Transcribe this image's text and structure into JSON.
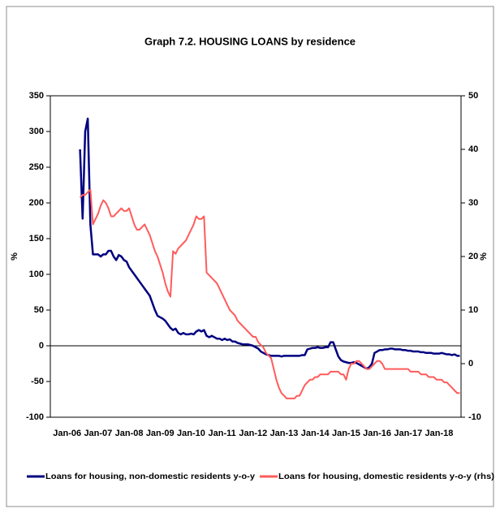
{
  "chart_data": {
    "type": "line",
    "title": "Graph 7.2. HOUSING LOANS by residence",
    "ylabel": "%",
    "y2label": "%",
    "categories": [
      null,
      null,
      null,
      null,
      null,
      null,
      "Jan-06",
      null,
      null,
      null,
      null,
      null,
      null,
      null,
      null,
      null,
      null,
      null,
      "Jan-07",
      null,
      null,
      null,
      null,
      null,
      null,
      null,
      null,
      null,
      null,
      null,
      "Jan-08",
      null,
      null,
      null,
      null,
      null,
      null,
      null,
      null,
      null,
      null,
      null,
      "Jan-09",
      null,
      null,
      null,
      null,
      null,
      null,
      null,
      null,
      null,
      null,
      null,
      "Jan-10",
      null,
      null,
      null,
      null,
      null,
      null,
      null,
      null,
      null,
      null,
      null,
      "Jan-11",
      null,
      null,
      null,
      null,
      null,
      null,
      null,
      null,
      null,
      null,
      null,
      "Jan-12",
      null,
      null,
      null,
      null,
      null,
      null,
      null,
      null,
      null,
      null,
      null,
      "Jan-13",
      null,
      null,
      null,
      null,
      null,
      null,
      null,
      null,
      null,
      null,
      null,
      "Jan-14",
      null,
      null,
      null,
      null,
      null,
      null,
      null,
      null,
      null,
      null,
      null,
      "Jan-15",
      null,
      null,
      null,
      null,
      null,
      null,
      null,
      null,
      null,
      null,
      null,
      "Jan-16",
      null,
      null,
      null,
      null,
      null,
      null,
      null,
      null,
      null,
      null,
      null,
      "Jan-17",
      null,
      null,
      null,
      null,
      null,
      null,
      null,
      null,
      null,
      null,
      null,
      "Jan-18",
      null,
      null,
      null,
      null,
      null,
      null,
      null,
      null
    ],
    "series": [
      {
        "name": "Loans for housing, non-domestic residents y-o-y",
        "color": "#000080",
        "axis": "y",
        "values": [
          null,
          null,
          null,
          null,
          null,
          null,
          null,
          null,
          null,
          null,
          null,
          275,
          178,
          300,
          318,
          170,
          128,
          128,
          128,
          125,
          128,
          128,
          133,
          133,
          125,
          120,
          127,
          125,
          120,
          118,
          110,
          105,
          100,
          95,
          90,
          85,
          80,
          75,
          70,
          60,
          50,
          42,
          40,
          38,
          35,
          30,
          25,
          22,
          24,
          18,
          16,
          18,
          16,
          16,
          17,
          16,
          20,
          22,
          20,
          22,
          14,
          12,
          14,
          12,
          10,
          10,
          8,
          10,
          8,
          9,
          6,
          6,
          4,
          3,
          2,
          2,
          2,
          1,
          0,
          -2,
          -4,
          -8,
          -10,
          -12,
          -13,
          -14,
          -14,
          -14,
          -14,
          -15,
          -14,
          -14,
          -14,
          -14,
          -14,
          -14,
          -14,
          -13,
          -13,
          -5,
          -4,
          -3,
          -3,
          -2,
          -3,
          -3,
          -2,
          -2,
          5,
          5,
          -5,
          -15,
          -20,
          -22,
          -23,
          -24,
          -24,
          -23,
          -24,
          -26,
          -28,
          -30,
          -32,
          -30,
          -25,
          -10,
          -8,
          -6,
          -6,
          -5,
          -5,
          -4,
          -4,
          -5,
          -5,
          -5,
          -6,
          -6,
          -7,
          -7,
          -8,
          -8,
          -8,
          -9,
          -9,
          -10,
          -10,
          -10,
          -11,
          -11,
          -11,
          -10,
          -11,
          -12,
          -12,
          -13,
          -12,
          -14,
          -14
        ]
      },
      {
        "name": "Loans for housing, domestic residents y-o-y (rhs)",
        "color": "#ff5b5b",
        "axis": "y2",
        "values": [
          null,
          null,
          null,
          null,
          null,
          null,
          null,
          null,
          null,
          null,
          null,
          31,
          31.5,
          31.5,
          32,
          32.5,
          26,
          27,
          28,
          29.5,
          30.5,
          30,
          29,
          27.5,
          27.5,
          28,
          28.5,
          29,
          28.5,
          28.5,
          29,
          27.5,
          26,
          25,
          25,
          25.5,
          26,
          25,
          24,
          22.5,
          21,
          20,
          18.5,
          17,
          15,
          13.5,
          12.5,
          21,
          20.5,
          21.5,
          22,
          22.5,
          23,
          24,
          25,
          26,
          27.5,
          27,
          27,
          27.5,
          17,
          16.5,
          16,
          15.5,
          15,
          14,
          13,
          12,
          11,
          10,
          9.5,
          9,
          8,
          7.5,
          7,
          6.5,
          6,
          5.5,
          5,
          5,
          4,
          3.5,
          3,
          2,
          1.5,
          1,
          -1,
          -3,
          -4.5,
          -5.5,
          -6,
          -6.5,
          -6.5,
          -6.5,
          -6.5,
          -6,
          -6,
          -5,
          -4,
          -3.5,
          -3,
          -3,
          -2.5,
          -2.5,
          -2,
          -2,
          -2,
          -2,
          -1.5,
          -1.5,
          -1.5,
          -1.5,
          -2,
          -2,
          -3,
          -1,
          0,
          0,
          0.5,
          0.5,
          0,
          -0.5,
          -1,
          -1,
          -0.5,
          0,
          0.5,
          0.5,
          0,
          -1,
          -1,
          -1,
          -1,
          -1,
          -1,
          -1,
          -1,
          -1,
          -1,
          -1.5,
          -1.5,
          -1.5,
          -1.5,
          -2,
          -2,
          -2,
          -2.5,
          -2.5,
          -2.5,
          -3,
          -3,
          -3,
          -3.5,
          -3.5,
          -4,
          -4.5,
          -5,
          -5.5,
          -5.5
        ]
      }
    ],
    "ylim": [
      -100,
      350
    ],
    "yticks": [
      -100,
      -50,
      0,
      50,
      100,
      150,
      200,
      250,
      300,
      350
    ],
    "y2lim": [
      -10,
      50
    ],
    "y2ticks": [
      -10,
      0,
      10,
      20,
      30,
      40,
      50
    ],
    "legend": "bottom"
  }
}
